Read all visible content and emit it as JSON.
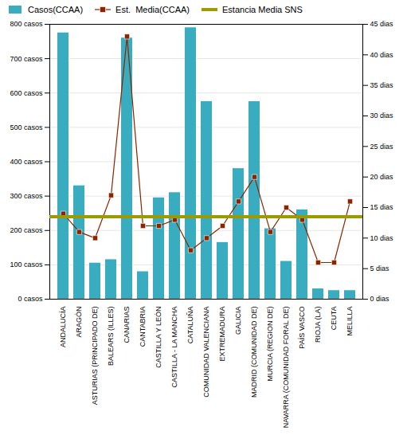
{
  "chart_data": {
    "type": "bar",
    "categories": [
      "ANDALUCÍA",
      "ARAGÓN",
      "ASTURIAS (PRINCIPADO DE)",
      "BALEARS (ILLES)",
      "CANARIAS",
      "CANTABRIA",
      "CASTILLA Y LEÓN",
      "CASTILLA - LA MANCHA",
      "CATALUÑA",
      "COMUNIDAD VALENCIANA",
      "EXTREMADURA",
      "GALICIA",
      "MADRID (COMUNIDAD DE)",
      "MURCIA (REGION DE)",
      "NAVARRA (COMUNIDAD FORAL DE)",
      "PAÍS VASCO",
      "RIOJA (LA)",
      "CEUTA",
      "MELILLA"
    ],
    "series": [
      {
        "name": "Casos(CCAA)",
        "type": "bar",
        "color": "#3AACBF",
        "values": [
          775,
          330,
          105,
          115,
          760,
          80,
          295,
          310,
          790,
          575,
          165,
          380,
          575,
          205,
          110,
          260,
          30,
          25,
          25
        ]
      },
      {
        "name": "Est.  Media(CCAA)",
        "type": "line",
        "color": "#8B2500",
        "marker": "square",
        "axis": "y2",
        "values": [
          14,
          11,
          10,
          17,
          43,
          12,
          12,
          13,
          8,
          10,
          12,
          16,
          20,
          11,
          15,
          13,
          6,
          6,
          16
        ]
      },
      {
        "name": "Estancia Media SNS",
        "type": "hline",
        "color": "#9B9B00",
        "axis": "y2",
        "value": 13.5
      }
    ],
    "ylim": [
      0,
      800
    ],
    "yticks": [
      {
        "value": 0,
        "label": "0 casos"
      },
      {
        "value": 100,
        "label": "100 casos"
      },
      {
        "value": 200,
        "label": "200 casos"
      },
      {
        "value": 300,
        "label": "300 casos"
      },
      {
        "value": 400,
        "label": "400 casos"
      },
      {
        "value": 500,
        "label": "500 casos"
      },
      {
        "value": 600,
        "label": "600 casos"
      },
      {
        "value": 700,
        "label": "700 casos"
      },
      {
        "value": 800,
        "label": "800 casos"
      }
    ],
    "y2lim": [
      0,
      45
    ],
    "y2ticks": [
      {
        "value": 0,
        "label": "0 dias"
      },
      {
        "value": 5,
        "label": "5 dias"
      },
      {
        "value": 10,
        "label": "10 dias"
      },
      {
        "value": 15,
        "label": "15 dias"
      },
      {
        "value": 20,
        "label": "20 dias"
      },
      {
        "value": 25,
        "label": "25 dias"
      },
      {
        "value": 30,
        "label": "30 dias"
      },
      {
        "value": 35,
        "label": "35 dias"
      },
      {
        "value": 40,
        "label": "40 dias"
      },
      {
        "value": 45,
        "label": "45 dias"
      }
    ],
    "grid": true,
    "legend": "upper left"
  }
}
